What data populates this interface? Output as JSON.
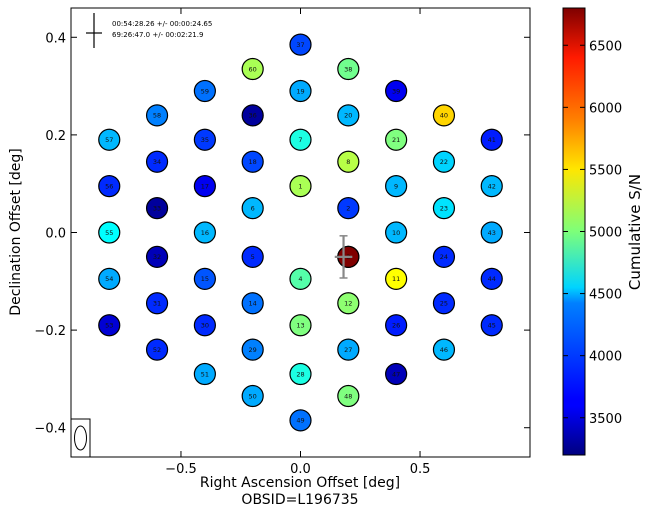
{
  "chart_data": {
    "type": "scatter",
    "title": "",
    "xlabel": "Right Ascension Offset [deg]",
    "ylabel": "Declination Offset [deg]",
    "footer": "OBSID=L196735",
    "xlim": [
      -0.96,
      0.96
    ],
    "ylim": [
      -0.46,
      0.46
    ],
    "xticks": [
      "−0.5",
      "0.0",
      "0.5"
    ],
    "xtick_values": [
      -0.5,
      0.0,
      0.5
    ],
    "yticks": [
      "0.4",
      "0.2",
      "0.0",
      "−0.2",
      "−0.4"
    ],
    "ytick_values": [
      0.4,
      0.2,
      0.0,
      -0.2,
      -0.4
    ],
    "grid": false,
    "colorbar": {
      "label": "Cumulative S/N",
      "min": 3200,
      "max": 6800,
      "ticks": [
        "3500",
        "4000",
        "4500",
        "5000",
        "5500",
        "6000",
        "6500"
      ],
      "tick_values": [
        3500,
        4000,
        4500,
        5000,
        5500,
        6000,
        6500
      ]
    },
    "annotation": {
      "ra": "00:54:28.26 +/- 00:00:24.65",
      "dec": "69:26:47.0 +/- 00:02:21.9"
    },
    "pulsar_position": {
      "x": 0.18,
      "y": -0.05,
      "xerr": 0.02,
      "yerr": 0.035
    },
    "beams": [
      {
        "label": "",
        "x": 0.2,
        "y": -0.05,
        "sn": 6800
      },
      {
        "label": "1",
        "x": 0.0,
        "y": 0.095,
        "sn": 5150
      },
      {
        "label": "2",
        "x": 0.2,
        "y": 0.05,
        "sn": 3850
      },
      {
        "label": "3",
        "x": 0.2,
        "y": -0.05,
        "sn": 6800
      },
      {
        "label": "4",
        "x": 0.0,
        "y": -0.095,
        "sn": 4850
      },
      {
        "label": "5",
        "x": -0.2,
        "y": -0.05,
        "sn": 3800
      },
      {
        "label": "6",
        "x": -0.2,
        "y": 0.05,
        "sn": 4300
      },
      {
        "label": "7",
        "x": 0.0,
        "y": 0.19,
        "sn": 4650
      },
      {
        "label": "8",
        "x": 0.2,
        "y": 0.145,
        "sn": 5200
      },
      {
        "label": "9",
        "x": 0.4,
        "y": 0.095,
        "sn": 4300
      },
      {
        "label": "10",
        "x": 0.4,
        "y": 0.0,
        "sn": 4300
      },
      {
        "label": "11",
        "x": 0.4,
        "y": -0.095,
        "sn": 5450
      },
      {
        "label": "12",
        "x": 0.2,
        "y": -0.145,
        "sn": 5050
      },
      {
        "label": "13",
        "x": 0.0,
        "y": -0.19,
        "sn": 5000
      },
      {
        "label": "14",
        "x": -0.2,
        "y": -0.145,
        "sn": 4050
      },
      {
        "label": "15",
        "x": -0.4,
        "y": -0.095,
        "sn": 3950
      },
      {
        "label": "16",
        "x": -0.4,
        "y": 0.0,
        "sn": 4300
      },
      {
        "label": "17",
        "x": -0.4,
        "y": 0.095,
        "sn": 3600
      },
      {
        "label": "18",
        "x": -0.2,
        "y": 0.145,
        "sn": 3900
      },
      {
        "label": "19",
        "x": 0.0,
        "y": 0.29,
        "sn": 4250
      },
      {
        "label": "20",
        "x": 0.2,
        "y": 0.24,
        "sn": 4300
      },
      {
        "label": "21",
        "x": 0.4,
        "y": 0.19,
        "sn": 5000
      },
      {
        "label": "22",
        "x": 0.6,
        "y": 0.145,
        "sn": 4400
      },
      {
        "label": "23",
        "x": 0.6,
        "y": 0.05,
        "sn": 4450
      },
      {
        "label": "24",
        "x": 0.6,
        "y": -0.05,
        "sn": 3800
      },
      {
        "label": "25",
        "x": 0.6,
        "y": -0.145,
        "sn": 3800
      },
      {
        "label": "26",
        "x": 0.4,
        "y": -0.19,
        "sn": 3750
      },
      {
        "label": "27",
        "x": 0.2,
        "y": -0.24,
        "sn": 4250
      },
      {
        "label": "28",
        "x": 0.0,
        "y": -0.29,
        "sn": 4650
      },
      {
        "label": "29",
        "x": -0.2,
        "y": -0.24,
        "sn": 4100
      },
      {
        "label": "30",
        "x": -0.4,
        "y": -0.19,
        "sn": 3800
      },
      {
        "label": "31",
        "x": -0.6,
        "y": -0.145,
        "sn": 3800
      },
      {
        "label": "32",
        "x": -0.6,
        "y": -0.05,
        "sn": 3400
      },
      {
        "label": "33",
        "x": -0.6,
        "y": 0.05,
        "sn": 3300
      },
      {
        "label": "34",
        "x": -0.6,
        "y": 0.145,
        "sn": 3800
      },
      {
        "label": "35",
        "x": -0.4,
        "y": 0.19,
        "sn": 3850
      },
      {
        "label": "36",
        "x": -0.2,
        "y": 0.24,
        "sn": 3300
      },
      {
        "label": "37",
        "x": 0.0,
        "y": 0.385,
        "sn": 3900
      },
      {
        "label": "38",
        "x": 0.2,
        "y": 0.335,
        "sn": 4950
      },
      {
        "label": "39",
        "x": 0.4,
        "y": 0.29,
        "sn": 3600
      },
      {
        "label": "40",
        "x": 0.6,
        "y": 0.24,
        "sn": 5600
      },
      {
        "label": "41",
        "x": 0.8,
        "y": 0.19,
        "sn": 3750
      },
      {
        "label": "42",
        "x": 0.8,
        "y": 0.095,
        "sn": 4300
      },
      {
        "label": "43",
        "x": 0.8,
        "y": 0.0,
        "sn": 4250
      },
      {
        "label": "44",
        "x": 0.8,
        "y": -0.095,
        "sn": 3800
      },
      {
        "label": "45",
        "x": 0.8,
        "y": -0.19,
        "sn": 3800
      },
      {
        "label": "46",
        "x": 0.6,
        "y": -0.24,
        "sn": 4300
      },
      {
        "label": "47",
        "x": 0.4,
        "y": -0.29,
        "sn": 3400
      },
      {
        "label": "48",
        "x": 0.2,
        "y": -0.335,
        "sn": 5000
      },
      {
        "label": "49",
        "x": 0.0,
        "y": -0.385,
        "sn": 4050
      },
      {
        "label": "50",
        "x": -0.2,
        "y": -0.335,
        "sn": 4250
      },
      {
        "label": "51",
        "x": -0.4,
        "y": -0.29,
        "sn": 4250
      },
      {
        "label": "52",
        "x": -0.6,
        "y": -0.24,
        "sn": 3800
      },
      {
        "label": "53",
        "x": -0.8,
        "y": -0.19,
        "sn": 3500
      },
      {
        "label": "54",
        "x": -0.8,
        "y": -0.095,
        "sn": 4250
      },
      {
        "label": "55",
        "x": -0.8,
        "y": 0.0,
        "sn": 4550
      },
      {
        "label": "56",
        "x": -0.8,
        "y": 0.095,
        "sn": 3800
      },
      {
        "label": "57",
        "x": -0.8,
        "y": 0.19,
        "sn": 4300
      },
      {
        "label": "58",
        "x": -0.6,
        "y": 0.24,
        "sn": 4100
      },
      {
        "label": "59",
        "x": -0.4,
        "y": 0.29,
        "sn": 4050
      },
      {
        "label": "60",
        "x": -0.2,
        "y": 0.335,
        "sn": 5150
      }
    ]
  }
}
